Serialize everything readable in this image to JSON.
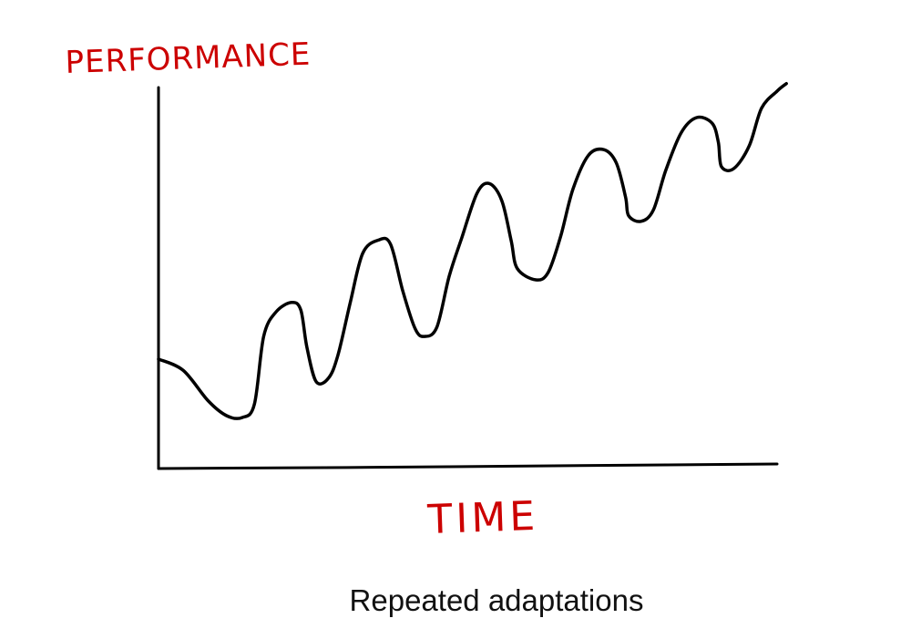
{
  "caption": "Repeated adaptations",
  "chart_data": {
    "type": "line",
    "title": "",
    "xlabel": "TIME",
    "ylabel": "PERFORMANCE",
    "xlim": [
      0,
      100
    ],
    "ylim": [
      0,
      100
    ],
    "grid": false,
    "legend": "none",
    "line_color": "#000000",
    "label_color": "#cc0000",
    "series": [
      {
        "values": [
          [
            0.0,
            29.0
          ],
          [
            4.0,
            26.0
          ],
          [
            8.0,
            18.0
          ],
          [
            11.0,
            14.0
          ],
          [
            13.5,
            13.5
          ],
          [
            15.5,
            17.0
          ],
          [
            17.0,
            35.0
          ],
          [
            19.0,
            41.5
          ],
          [
            21.5,
            44.0
          ],
          [
            23.0,
            42.0
          ],
          [
            24.0,
            32.0
          ],
          [
            25.5,
            23.0
          ],
          [
            27.5,
            24.0
          ],
          [
            29.0,
            30.0
          ],
          [
            31.0,
            44.0
          ],
          [
            33.0,
            57.0
          ],
          [
            35.5,
            60.5
          ],
          [
            37.5,
            59.5
          ],
          [
            39.5,
            47.0
          ],
          [
            41.5,
            37.0
          ],
          [
            43.0,
            35.0
          ],
          [
            45.0,
            37.5
          ],
          [
            47.0,
            51.0
          ],
          [
            49.0,
            61.0
          ],
          [
            51.5,
            73.0
          ],
          [
            53.5,
            75.5
          ],
          [
            55.5,
            71.0
          ],
          [
            57.0,
            60.5
          ],
          [
            58.0,
            53.0
          ],
          [
            61.0,
            50.0
          ],
          [
            63.0,
            52.0
          ],
          [
            65.0,
            61.5
          ],
          [
            67.0,
            74.0
          ],
          [
            69.5,
            83.0
          ],
          [
            72.0,
            84.5
          ],
          [
            74.0,
            81.0
          ],
          [
            75.5,
            72.0
          ],
          [
            76.0,
            67.0
          ],
          [
            78.0,
            65.5
          ],
          [
            80.0,
            68.5
          ],
          [
            82.0,
            79.0
          ],
          [
            84.5,
            89.0
          ],
          [
            87.0,
            93.0
          ],
          [
            89.5,
            91.5
          ],
          [
            90.5,
            86.5
          ],
          [
            91.0,
            80.0
          ],
          [
            93.0,
            79.5
          ],
          [
            95.5,
            85.5
          ],
          [
            97.5,
            95.5
          ],
          [
            100.0,
            100.0
          ],
          [
            101.5,
            102.0
          ]
        ]
      }
    ]
  }
}
